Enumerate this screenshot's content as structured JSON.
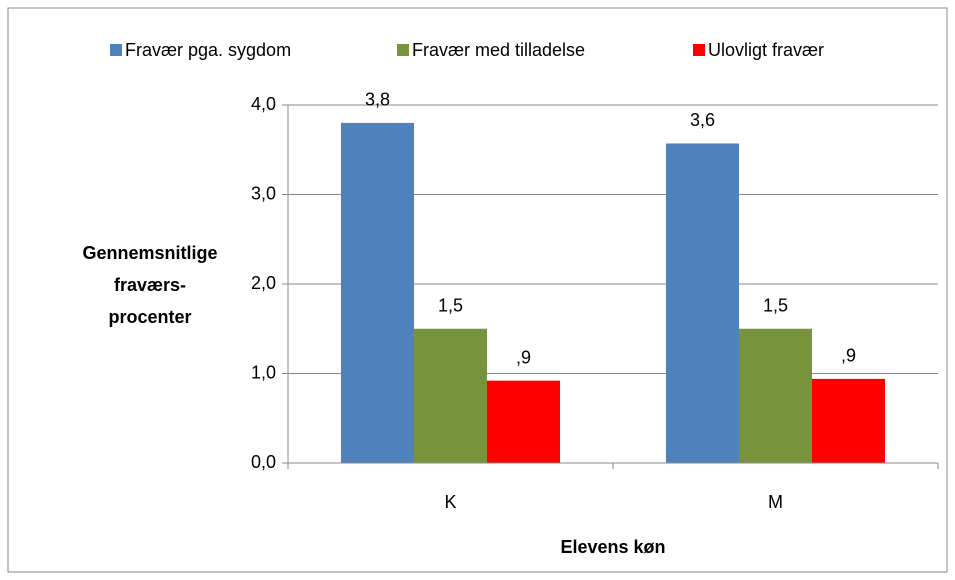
{
  "chart_data": {
    "type": "bar",
    "categories": [
      "K",
      "M"
    ],
    "series": [
      {
        "name": "Fravær pga. sygdom",
        "color": "#4f81bd",
        "values": [
          3.8,
          3.57
        ],
        "value_labels": [
          "3,8",
          "3,6"
        ]
      },
      {
        "name": "Fravær med tilladelse",
        "color": "#77933c",
        "values": [
          1.5,
          1.5
        ],
        "value_labels": [
          "1,5",
          "1,5"
        ]
      },
      {
        "name": "Ulovligt fravær",
        "color": "#ff0000",
        "values": [
          0.92,
          0.94
        ],
        "value_labels": [
          ",9",
          ",9"
        ]
      }
    ],
    "xlabel": "Elevens køn",
    "ylabel": [
      "Gennemsnitlige",
      "fraværs-",
      "procenter"
    ],
    "ylim": [
      0,
      4
    ],
    "yticks": [
      {
        "value": 0,
        "label": "0,0"
      },
      {
        "value": 1,
        "label": "1,0"
      },
      {
        "value": 2,
        "label": "2,0"
      },
      {
        "value": 3,
        "label": "3,0"
      },
      {
        "value": 4,
        "label": "4,0"
      }
    ],
    "grid": true,
    "legend": "top"
  }
}
